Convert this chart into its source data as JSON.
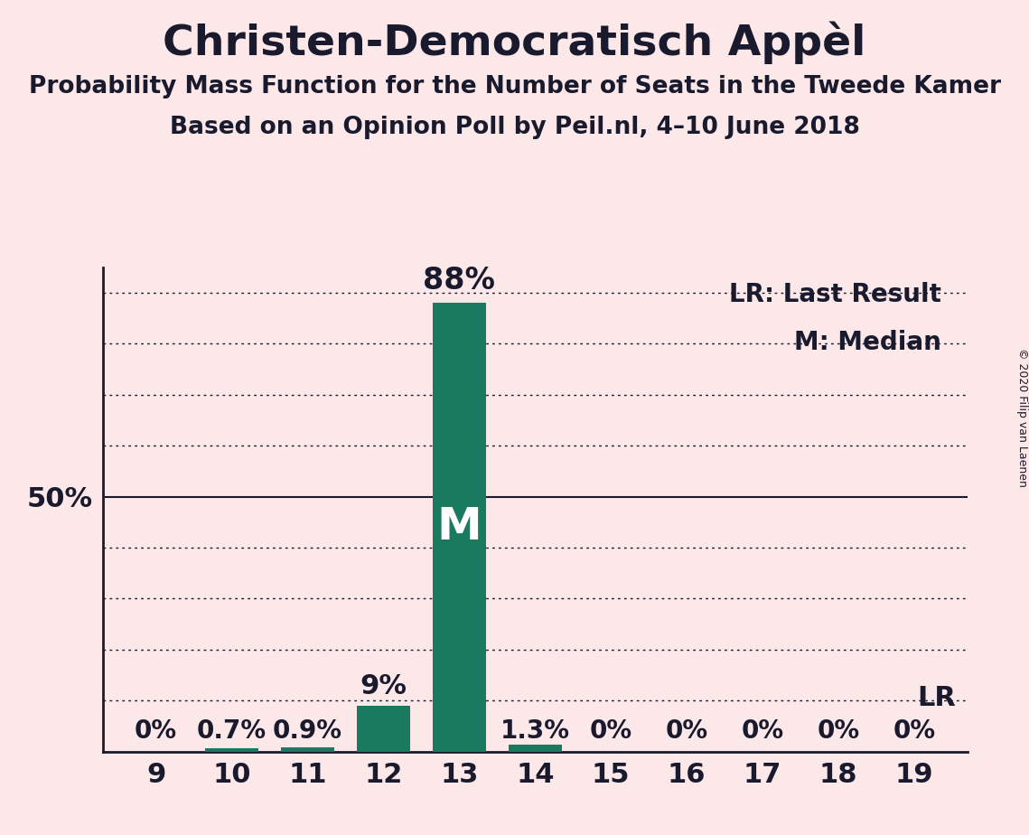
{
  "title": "Christen-Democratisch Appèl",
  "subtitle1": "Probability Mass Function for the Number of Seats in the Tweede Kamer",
  "subtitle2": "Based on an Opinion Poll by Peil.nl, 4–10 June 2018",
  "copyright": "© 2020 Filip van Laenen",
  "seats": [
    9,
    10,
    11,
    12,
    13,
    14,
    15,
    16,
    17,
    18,
    19
  ],
  "probabilities": [
    0.0,
    0.7,
    0.9,
    9.0,
    88.0,
    1.3,
    0.0,
    0.0,
    0.0,
    0.0,
    0.0
  ],
  "bar_labels": [
    "0%",
    "0.7%",
    "0.9%",
    "9%",
    "88%",
    "1.3%",
    "0%",
    "0%",
    "0%",
    "0%",
    "0%"
  ],
  "median_seat": 13,
  "lr_seat": 19,
  "bar_color": "#1a7a60",
  "background_color": "#fce8e8",
  "text_color": "#1a1a2e",
  "yticks": [
    0,
    10,
    20,
    30,
    40,
    50,
    60,
    70,
    80,
    90
  ],
  "ymax": 95,
  "legend_lr": "LR: Last Result",
  "legend_m": "M: Median"
}
